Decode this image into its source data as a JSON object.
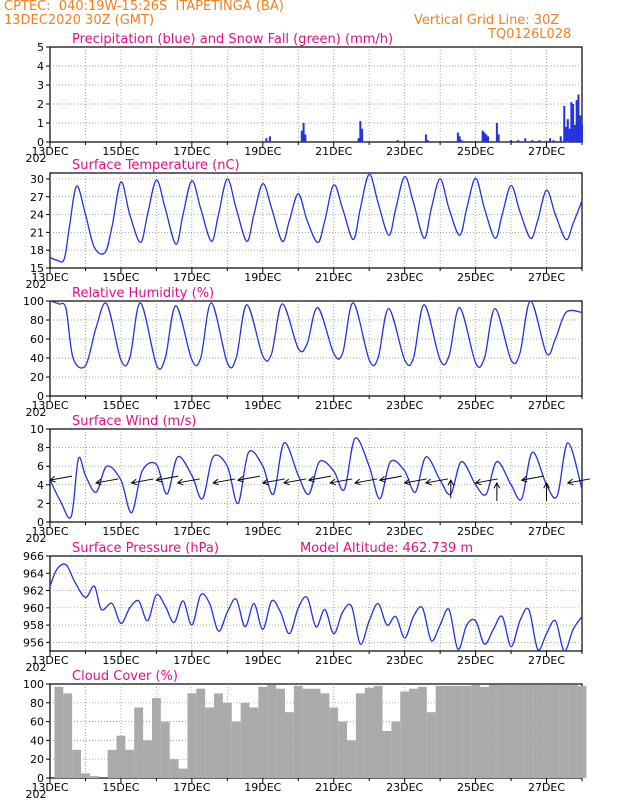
{
  "header": {
    "line1_left": "CPTEC:  040:19W-15:26S  ITAPETINGA (BA)",
    "line2_left": "13DEC2020 30Z (GMT)",
    "line2_right": "Vertical Grid Line: 30Z",
    "line3_right": "TQ0126L028"
  },
  "colors": {
    "title": "#e0108a",
    "header": "#f08020",
    "series": "#2233dd",
    "snow": "#22aa22",
    "cloud": "#aaaaaa",
    "grid": "#888888"
  },
  "x_axis": {
    "labels": [
      "13DEC",
      "15DEC",
      "17DEC",
      "19DEC",
      "21DEC",
      "23DEC",
      "25DEC",
      "27DEC"
    ],
    "year_fragment": "202"
  },
  "chart_data": [
    {
      "id": "precip",
      "type": "bar",
      "title": "Precipitation (blue) and Snow Fall (green) (mm/h)",
      "ylim": [
        0,
        5
      ],
      "yticks": [
        0,
        1,
        2,
        3,
        4,
        5
      ],
      "x_days": [
        0,
        15
      ],
      "series": [
        {
          "name": "Precipitation",
          "color": "#2233dd",
          "x": [
            6.1,
            6.2,
            7.1,
            7.15,
            7.2,
            8.7,
            8.75,
            8.8,
            9.8,
            10.6,
            10.65,
            11.5,
            11.55,
            11.6,
            12.2,
            12.25,
            12.3,
            12.35,
            12.6,
            12.65,
            13.0,
            13.2,
            13.4,
            13.6,
            13.8,
            14.1,
            14.2,
            14.4,
            14.5,
            14.55,
            14.6,
            14.65,
            14.7,
            14.75,
            14.8,
            14.85,
            14.9,
            14.95,
            15.0
          ],
          "values": [
            0.2,
            0.3,
            0.6,
            1.0,
            0.4,
            0.2,
            1.1,
            0.7,
            0.1,
            0.4,
            0.1,
            0.5,
            0.3,
            0.1,
            0.6,
            0.5,
            0.4,
            0.3,
            1.0,
            0.4,
            0.1,
            0.1,
            0.2,
            0.1,
            0.1,
            0.2,
            0.1,
            0.3,
            1.9,
            0.8,
            1.2,
            0.7,
            2.1,
            2.0,
            0.9,
            2.2,
            2.5,
            1.4,
            0.9
          ]
        },
        {
          "name": "Snow Fall",
          "color": "#22aa22",
          "x": [
            12.8,
            13.9,
            14.6
          ],
          "values": [
            0.05,
            0.05,
            0.05
          ]
        }
      ]
    },
    {
      "id": "temperature",
      "type": "line",
      "title": "Surface Temperature (nC)",
      "ylim": [
        15,
        31
      ],
      "yticks": [
        15,
        18,
        21,
        24,
        27,
        30
      ],
      "x_days": [
        0,
        15
      ],
      "series": [
        {
          "name": "Temperature",
          "color": "#2233dd",
          "x": [
            0,
            0.2,
            0.4,
            0.55,
            0.75,
            1.0,
            1.25,
            1.55,
            1.75,
            2.0,
            2.25,
            2.55,
            2.75,
            3.0,
            3.25,
            3.55,
            3.75,
            4.0,
            4.25,
            4.55,
            4.75,
            5.0,
            5.25,
            5.55,
            5.75,
            6.0,
            6.25,
            6.55,
            6.75,
            7.0,
            7.25,
            7.55,
            7.75,
            8.0,
            8.25,
            8.55,
            8.75,
            9.0,
            9.25,
            9.55,
            9.75,
            10.0,
            10.25,
            10.55,
            10.75,
            11.0,
            11.25,
            11.55,
            11.75,
            12.0,
            12.25,
            12.55,
            12.75,
            13.0,
            13.25,
            13.55,
            13.75,
            14.0,
            14.25,
            14.55,
            14.75,
            15.0
          ],
          "values": [
            16.8,
            16.3,
            16.5,
            22.0,
            28.8,
            24.0,
            18.5,
            17.6,
            22.0,
            29.5,
            24.0,
            19.3,
            24.0,
            29.8,
            25.0,
            19.0,
            24.0,
            29.7,
            25.0,
            19.5,
            24.0,
            30.0,
            25.0,
            19.5,
            24.0,
            29.2,
            25.0,
            19.5,
            23.0,
            27.5,
            23.0,
            19.3,
            23.0,
            29.0,
            25.0,
            19.8,
            25.0,
            30.8,
            26.0,
            20.5,
            25.0,
            30.4,
            26.0,
            20.0,
            25.0,
            30.0,
            25.0,
            20.5,
            25.0,
            30.1,
            25.0,
            20.0,
            24.0,
            28.9,
            24.5,
            20.0,
            23.0,
            28.1,
            24.0,
            19.8,
            22.5,
            26.3
          ]
        }
      ]
    },
    {
      "id": "humidity",
      "type": "line",
      "title": "Relative Humidity (%)",
      "ylim": [
        0,
        100
      ],
      "yticks": [
        0,
        20,
        40,
        60,
        80,
        100
      ],
      "x_days": [
        0,
        15
      ],
      "series": [
        {
          "name": "Relative Humidity",
          "color": "#2233dd",
          "x": [
            0,
            0.25,
            0.45,
            0.65,
            1.0,
            1.3,
            1.6,
            2.0,
            2.25,
            2.55,
            3.0,
            3.25,
            3.55,
            4.0,
            4.25,
            4.55,
            5.0,
            5.25,
            5.55,
            6.0,
            6.25,
            6.55,
            7.0,
            7.25,
            7.55,
            8.0,
            8.25,
            8.55,
            9.0,
            9.25,
            9.55,
            10.0,
            10.25,
            10.55,
            11.0,
            11.25,
            11.55,
            12.0,
            12.25,
            12.55,
            13.0,
            13.25,
            13.55,
            14.0,
            14.25,
            14.55,
            15.0
          ],
          "values": [
            100,
            97,
            92,
            40,
            32,
            72,
            97,
            38,
            40,
            98,
            33,
            40,
            95,
            38,
            40,
            98,
            35,
            40,
            96,
            42,
            45,
            97,
            50,
            55,
            93,
            45,
            45,
            98,
            38,
            40,
            92,
            38,
            40,
            96,
            38,
            42,
            93,
            35,
            40,
            92,
            38,
            45,
            100,
            45,
            60,
            88,
            88
          ]
        }
      ]
    },
    {
      "id": "wind",
      "type": "line",
      "title": "Surface Wind (m/s)",
      "ylim": [
        0,
        10
      ],
      "yticks": [
        0,
        2,
        4,
        6,
        8,
        10
      ],
      "x_days": [
        0,
        15
      ],
      "series": [
        {
          "name": "Wind speed",
          "color": "#2233dd",
          "x": [
            0,
            0.3,
            0.6,
            0.8,
            1.0,
            1.3,
            1.6,
            2.0,
            2.3,
            2.6,
            3.0,
            3.3,
            3.6,
            4.0,
            4.3,
            4.6,
            5.0,
            5.3,
            5.6,
            6.0,
            6.3,
            6.6,
            7.0,
            7.3,
            7.6,
            8.0,
            8.3,
            8.6,
            9.0,
            9.3,
            9.6,
            10.0,
            10.3,
            10.6,
            11.0,
            11.3,
            11.6,
            12.0,
            12.3,
            12.6,
            13.0,
            13.3,
            13.6,
            14.0,
            14.3,
            14.6,
            15.0
          ],
          "values": [
            4.5,
            2.2,
            0.6,
            6.8,
            5.0,
            3.2,
            6.0,
            4.5,
            1.0,
            5.5,
            6.2,
            3.0,
            7.0,
            5.0,
            2.5,
            7.0,
            6.0,
            2.0,
            7.5,
            6.0,
            3.0,
            8.5,
            5.0,
            3.0,
            6.5,
            5.5,
            3.5,
            9.0,
            6.0,
            2.5,
            6.5,
            5.5,
            3.2,
            7.0,
            4.5,
            3.0,
            6.5,
            4.0,
            3.0,
            6.5,
            4.0,
            2.5,
            7.5,
            4.0,
            2.8,
            8.5,
            3.5
          ]
        }
      ],
      "barbs_x": [
        0.0,
        1.3,
        2.3,
        3.0,
        3.6,
        4.6,
        5.3,
        6.0,
        6.6,
        7.3,
        7.9,
        8.6,
        9.3,
        10.0,
        10.6,
        11.3,
        12.0,
        12.6,
        13.3,
        14.0,
        14.6
      ]
    },
    {
      "id": "pressure",
      "type": "line",
      "title": "Surface Pressure (hPa)",
      "subtitle": "Model Altitude: 462.739 m",
      "ylim": [
        955,
        966
      ],
      "yticks": [
        956,
        958,
        960,
        962,
        964,
        966
      ],
      "x_days": [
        0,
        15
      ],
      "series": [
        {
          "name": "Pressure",
          "color": "#2233dd",
          "x": [
            0,
            0.2,
            0.45,
            0.7,
            1.0,
            1.25,
            1.45,
            1.75,
            2.0,
            2.25,
            2.5,
            2.75,
            3.0,
            3.25,
            3.5,
            3.75,
            4.0,
            4.25,
            4.5,
            4.75,
            5.0,
            5.25,
            5.5,
            5.75,
            6.0,
            6.25,
            6.5,
            6.75,
            7.0,
            7.25,
            7.5,
            7.75,
            8.0,
            8.25,
            8.5,
            8.75,
            9.0,
            9.25,
            9.5,
            9.75,
            10.0,
            10.25,
            10.5,
            10.75,
            11.0,
            11.25,
            11.5,
            11.75,
            12.0,
            12.25,
            12.5,
            12.75,
            13.0,
            13.25,
            13.5,
            13.75,
            14.0,
            14.25,
            14.5,
            14.75,
            15.0
          ],
          "values": [
            962.5,
            964.5,
            965.0,
            963.0,
            961.2,
            962.5,
            959.8,
            960.5,
            958.2,
            960.0,
            960.8,
            958.5,
            961.5,
            960.2,
            958.3,
            960.8,
            958.0,
            961.5,
            960.5,
            957.3,
            959.5,
            961.0,
            957.8,
            960.5,
            957.5,
            960.8,
            959.5,
            957.0,
            960.0,
            961.2,
            957.8,
            959.8,
            957.0,
            959.5,
            960.2,
            955.8,
            958.5,
            960.5,
            958.0,
            959.0,
            956.5,
            959.0,
            960.0,
            956.2,
            958.0,
            959.8,
            955.2,
            958.0,
            958.5,
            955.8,
            957.5,
            959.0,
            955.5,
            958.5,
            959.8,
            955.2,
            957.0,
            958.5,
            955.0,
            957.5,
            959.0
          ]
        }
      ]
    },
    {
      "id": "cloud",
      "type": "bar",
      "title": "Cloud Cover (%)",
      "ylim": [
        0,
        100
      ],
      "yticks": [
        0,
        20,
        40,
        60,
        80,
        100
      ],
      "x_days": [
        0,
        15
      ],
      "series": [
        {
          "name": "Cloud Cover",
          "color": "#aaaaaa",
          "x": [
            0,
            0.25,
            0.5,
            0.75,
            1.0,
            1.25,
            1.5,
            1.75,
            2.0,
            2.25,
            2.5,
            2.75,
            3.0,
            3.25,
            3.5,
            3.75,
            4.0,
            4.25,
            4.5,
            4.75,
            5.0,
            5.25,
            5.5,
            5.75,
            6.0,
            6.25,
            6.5,
            6.75,
            7.0,
            7.25,
            7.5,
            7.75,
            8.0,
            8.25,
            8.5,
            8.75,
            9.0,
            9.25,
            9.5,
            9.75,
            10.0,
            10.25,
            10.5,
            10.75,
            11.0,
            11.25,
            11.5,
            11.75,
            12.0,
            12.25,
            12.5,
            12.75,
            13.0,
            13.25,
            13.5,
            13.75,
            14.0,
            14.25,
            14.5,
            14.75,
            15.0
          ],
          "values": [
            0,
            97,
            90,
            30,
            5,
            2,
            0,
            30,
            45,
            30,
            75,
            40,
            85,
            60,
            20,
            10,
            90,
            95,
            75,
            90,
            80,
            60,
            80,
            75,
            97,
            99,
            95,
            70,
            98,
            95,
            95,
            90,
            75,
            60,
            40,
            90,
            96,
            98,
            50,
            60,
            92,
            95,
            97,
            70,
            98,
            98,
            98,
            98,
            99,
            97,
            99,
            99,
            99,
            99,
            99,
            99,
            99,
            99,
            99,
            99,
            98
          ]
        }
      ]
    }
  ]
}
